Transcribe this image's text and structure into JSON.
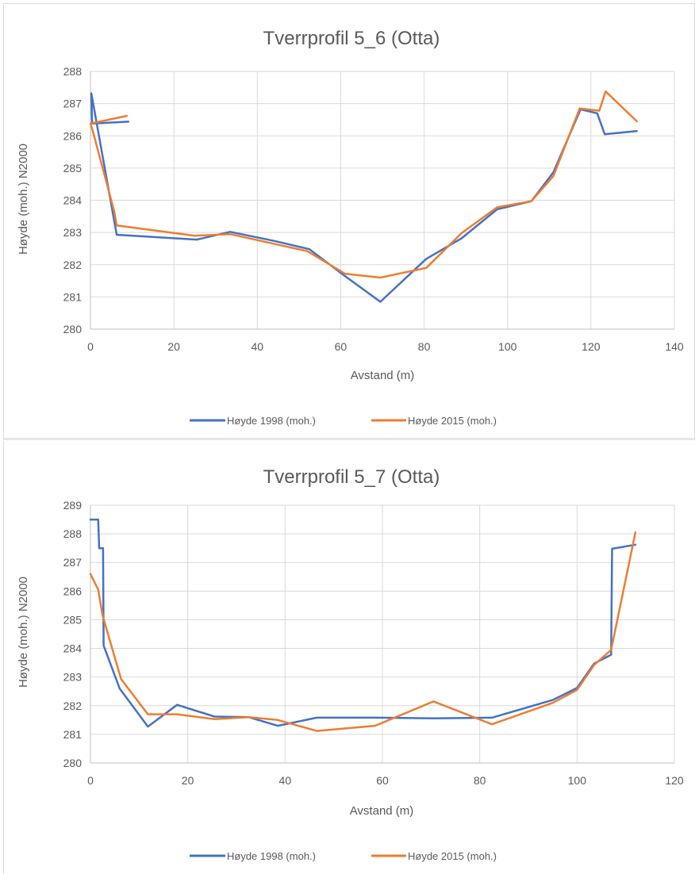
{
  "chart_data": [
    {
      "type": "line",
      "title": "Tverrprofil 5_6 (Otta)",
      "xlabel": "Avstand (m)",
      "ylabel": "Høyde (moh.) N2000",
      "xlim": [
        0,
        140
      ],
      "ylim": [
        280,
        288
      ],
      "xticks": [
        0,
        20,
        40,
        60,
        80,
        100,
        120,
        140
      ],
      "yticks": [
        280,
        281,
        282,
        283,
        284,
        285,
        286,
        287,
        288
      ],
      "grid": true,
      "legend_position": "bottom",
      "series": [
        {
          "name": "Høyde 1998 (moh.)",
          "color": "#4472C4",
          "x": [
            9.1,
            0.4,
            0.2,
            6.3,
            25.5,
            33.5,
            44,
            52.5,
            61,
            69.5,
            80.5,
            89,
            97.5,
            105.7,
            111,
            117.5,
            121.5,
            123.3,
            131
          ],
          "y": [
            286.44,
            286.38,
            287.32,
            282.93,
            282.78,
            283.02,
            282.74,
            282.48,
            281.65,
            280.85,
            282.18,
            282.82,
            283.72,
            283.97,
            284.87,
            286.82,
            286.7,
            286.05,
            286.15
          ]
        },
        {
          "name": "Høyde 2015 (moh.)",
          "color": "#ED7D31",
          "x": [
            8.7,
            0,
            0.5,
            5.7,
            6.3,
            25,
            33.5,
            52,
            61,
            69.5,
            80.5,
            89,
            97.5,
            105.7,
            111,
            117.3,
            122,
            123.5,
            131
          ],
          "y": [
            286.62,
            286.38,
            286.18,
            283.65,
            283.22,
            282.9,
            282.95,
            282.42,
            281.72,
            281.6,
            281.9,
            282.98,
            283.78,
            283.97,
            284.75,
            286.85,
            286.78,
            287.38,
            286.45
          ]
        }
      ]
    },
    {
      "type": "line",
      "title": "Tverrprofil 5_7 (Otta)",
      "xlabel": "Avstand (m)",
      "ylabel": "Høyde (moh.) N2000",
      "xlim": [
        0,
        120
      ],
      "ylim": [
        280,
        289
      ],
      "xticks": [
        0,
        20,
        40,
        60,
        80,
        100,
        120
      ],
      "yticks": [
        280,
        281,
        282,
        283,
        284,
        285,
        286,
        287,
        288,
        289
      ],
      "grid": true,
      "legend_position": "bottom",
      "series": [
        {
          "name": "Høyde 1998 (moh.)",
          "color": "#4472C4",
          "x": [
            0,
            1.6,
            1.8,
            2.6,
            2.7,
            6,
            11.8,
            17.8,
            25.5,
            32.5,
            38.5,
            46.5,
            58.5,
            70.5,
            82.5,
            95,
            100,
            103.5,
            107,
            107.2,
            112
          ],
          "y": [
            288.5,
            288.5,
            287.5,
            287.5,
            284.1,
            282.6,
            281.27,
            282.03,
            281.62,
            281.6,
            281.3,
            281.58,
            281.58,
            281.56,
            281.58,
            282.2,
            282.62,
            283.47,
            283.78,
            287.48,
            287.62
          ]
        },
        {
          "name": "Høyde 2015 (moh.)",
          "color": "#ED7D31",
          "x": [
            0,
            1.6,
            2.5,
            6.3,
            11.8,
            17.8,
            25.5,
            32.5,
            38.5,
            46.5,
            58.5,
            70.5,
            82.5,
            95,
            100,
            103.5,
            107,
            112
          ],
          "y": [
            286.6,
            286.05,
            285.15,
            282.93,
            281.7,
            281.7,
            281.53,
            281.6,
            281.5,
            281.12,
            281.3,
            282.15,
            281.35,
            282.1,
            282.55,
            283.42,
            283.95,
            288.05
          ]
        }
      ]
    }
  ]
}
